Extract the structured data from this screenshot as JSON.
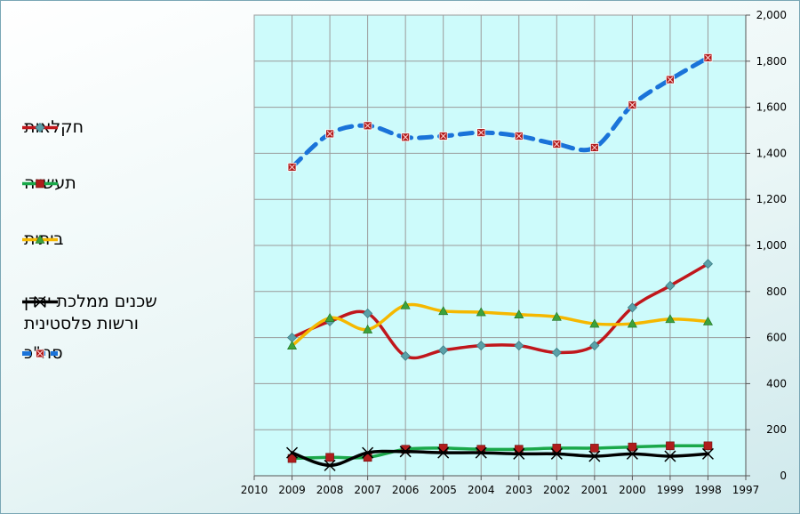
{
  "chart_data": {
    "type": "line",
    "x": [
      2009,
      2008,
      2007,
      2006,
      2005,
      2004,
      2003,
      2002,
      2001,
      2000,
      1999,
      1998
    ],
    "xlim": [
      2010,
      1997
    ],
    "xticks": [
      "2010",
      "2009",
      "2008",
      "2007",
      "2006",
      "2005",
      "2004",
      "2003",
      "2002",
      "2001",
      "2000",
      "1999",
      "1998",
      "1997"
    ],
    "ylim": [
      0,
      2000
    ],
    "yticks": [
      "0",
      "200",
      "400",
      "600",
      "800",
      "1,000",
      "1,200",
      "1,400",
      "1,600",
      "1,800",
      "2,000"
    ],
    "yaxis_position": "right",
    "grid": true,
    "legend_position": "left",
    "series": [
      {
        "name": "חקלאות",
        "color": "#c0171c",
        "marker": "diamond",
        "marker_color": "#5aa0a8",
        "dash": false,
        "values": [
          600,
          670,
          705,
          520,
          545,
          565,
          565,
          535,
          565,
          730,
          825,
          920
        ]
      },
      {
        "name": "תעשייה",
        "color": "#1aa84a",
        "marker": "square",
        "marker_color": "#b01c1c",
        "dash": false,
        "values": [
          75,
          80,
          80,
          115,
          120,
          115,
          115,
          120,
          120,
          125,
          130,
          130
        ]
      },
      {
        "name": "ביתית",
        "color": "#f5b800",
        "marker": "triangle",
        "marker_color": "#3ca23c",
        "dash": false,
        "values": [
          565,
          685,
          635,
          740,
          715,
          710,
          700,
          690,
          660,
          660,
          680,
          670
        ]
      },
      {
        "name": "שכנים ממלכת ירדן\nורשות פלסטינית",
        "color": "#000000",
        "marker": "x",
        "marker_color": "#000000",
        "dash": false,
        "values": [
          100,
          45,
          100,
          105,
          100,
          100,
          95,
          95,
          85,
          95,
          85,
          95
        ]
      },
      {
        "name": "סה\"כ",
        "color": "#1a73d9",
        "marker": "xsquare",
        "marker_color": "#b01c1c",
        "dash": true,
        "values": [
          1340,
          1485,
          1520,
          1470,
          1475,
          1490,
          1475,
          1440,
          1425,
          1610,
          1720,
          1815
        ]
      }
    ]
  }
}
